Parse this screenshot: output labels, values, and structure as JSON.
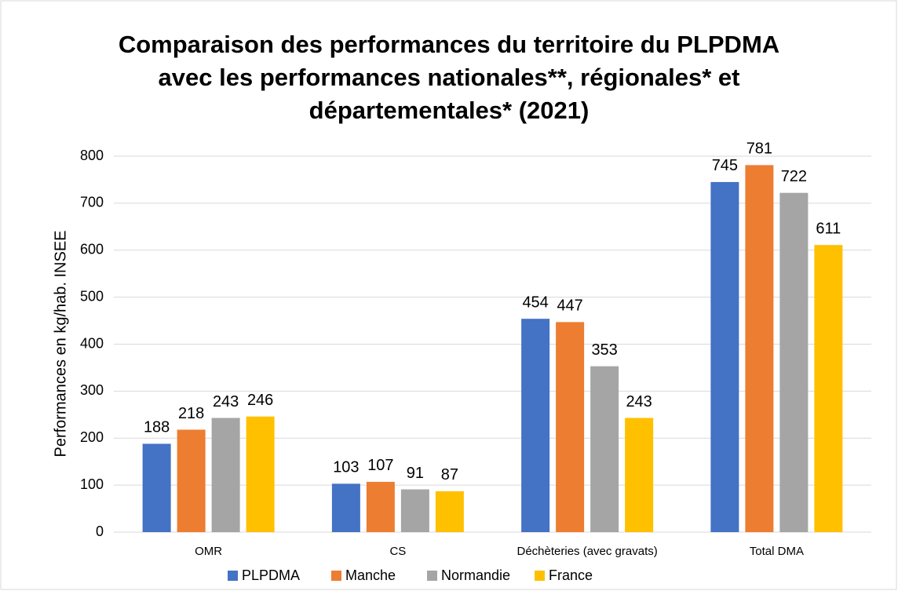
{
  "chart_data": {
    "type": "bar",
    "title": "Comparaison des performances du territoire du PLPDMA avec les performances nationales**, régionales* et départementales* (2021)",
    "y_label": "Performances en kg/hab. INSEE",
    "categories": [
      "OMR",
      "CS",
      "Déchèteries (avec gravats)",
      "Total DMA"
    ],
    "series": [
      {
        "name": "PLPDMA",
        "color": "#4472c4",
        "values": [
          188,
          103,
          454,
          745
        ]
      },
      {
        "name": "Manche",
        "color": "#ed7d31",
        "values": [
          218,
          107,
          447,
          781
        ]
      },
      {
        "name": "Normandie",
        "color": "#a5a5a5",
        "values": [
          243,
          91,
          353,
          722
        ]
      },
      {
        "name": "France",
        "color": "#ffc000",
        "values": [
          246,
          87,
          243,
          611
        ]
      }
    ],
    "ylim": [
      0,
      800
    ],
    "yticks": [
      0,
      100,
      200,
      300,
      400,
      500,
      600,
      700,
      800
    ],
    "grid": true,
    "legend": "bottom"
  }
}
